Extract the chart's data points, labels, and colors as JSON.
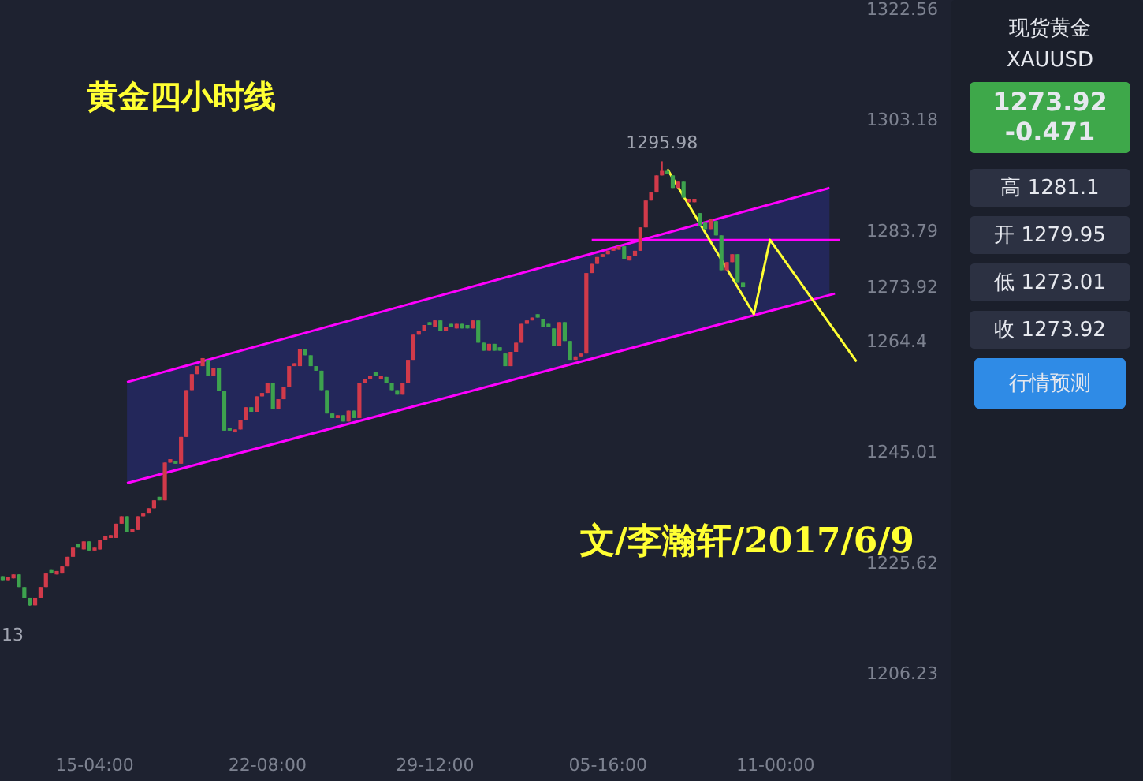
{
  "chart_data": {
    "type": "candlestick",
    "title": "黄金四小时线",
    "annotations": [
      "文/李瀚轩/2017/6/9",
      {
        "text": "1295.98",
        "y": 1295.98
      },
      "13",
      "现货黄金",
      "XAUUSD",
      "1273.92",
      "-0.471",
      "高 1281.1",
      "开 1279.95",
      "低 1273.01",
      "收 1273.92",
      "行情预测"
    ],
    "categories": [
      null,
      null,
      null,
      null,
      null,
      null,
      null,
      null,
      null,
      null,
      null,
      null,
      null,
      null,
      null,
      null,
      null,
      "15-04:00",
      null,
      null,
      null,
      null,
      null,
      null,
      null,
      null,
      null,
      null,
      null,
      null,
      null,
      null,
      null,
      null,
      null,
      null,
      null,
      null,
      null,
      null,
      null,
      null,
      null,
      null,
      null,
      null,
      null,
      null,
      null,
      "22-08:00",
      null,
      null,
      null,
      null,
      null,
      null,
      null,
      null,
      null,
      null,
      null,
      null,
      null,
      null,
      null,
      null,
      null,
      null,
      null,
      null,
      null,
      null,
      null,
      null,
      null,
      null,
      null,
      null,
      null,
      null,
      "29-12:00",
      null,
      null,
      null,
      null,
      null,
      null,
      null,
      null,
      null,
      null,
      null,
      null,
      null,
      null,
      null,
      null,
      null,
      null,
      null,
      null,
      null,
      null,
      null,
      null,
      null,
      null,
      null,
      null,
      null,
      null,
      null,
      "05-16:00",
      null,
      null,
      null,
      null,
      null,
      null,
      null,
      null,
      null,
      null,
      null,
      null,
      null,
      null,
      null,
      null,
      null,
      null,
      null,
      null,
      null,
      null,
      null,
      null,
      null,
      null,
      null,
      null,
      null,
      null,
      "11-00:00",
      null,
      null,
      null,
      null,
      null,
      null,
      null,
      null,
      null,
      null,
      null,
      null,
      null,
      null,
      null
    ],
    "colors": [
      "#3da24e",
      "#d13a4a",
      "#d13a4a",
      "#3da24e",
      "#3da24e",
      "#3da24e",
      "#d13a4a",
      "#d13a4a",
      "#d13a4a",
      "#3da24e",
      "#d13a4a",
      "#d13a4a",
      "#d13a4a",
      "#d13a4a",
      "#3da24e",
      "#d13a4a",
      "#3da24e",
      "#d13a4a",
      "#d13a4a",
      "#d13a4a",
      "#d13a4a",
      "#d13a4a",
      "#d13a4a",
      "#3da24e",
      "#d13a4a",
      "#d13a4a",
      "#d13a4a",
      "#d13a4a",
      "#d13a4a",
      "#3da24e",
      "#d13a4a",
      "#d13a4a",
      "#3da24e",
      "#d13a4a",
      "#d13a4a",
      "#d13a4a",
      "#d13a4a",
      "#d13a4a",
      "#3da24e",
      "#d13a4a",
      "#3da24e",
      "#3da24e",
      "#3da24e",
      "#d13a4a",
      "#d13a4a",
      "#d13a4a",
      "#3da24e",
      "#d13a4a",
      "#d13a4a",
      "#d13a4a",
      "#3da24e",
      "#d13a4a",
      "#d13a4a",
      "#d13a4a",
      "#d13a4a",
      "#d13a4a",
      "#3da24e",
      "#3da24e",
      "#3da24e",
      "#3da24e",
      "#3da24e",
      "#3da24e",
      "#d13a4a",
      "#3da24e",
      "#d13a4a",
      "#3da24e",
      "#d13a4a",
      "#d13a4a",
      "#d13a4a",
      "#3da24e",
      "#d13a4a",
      "#3da24e",
      "#3da24e",
      "#3da24e",
      "#d13a4a",
      "#d13a4a",
      "#d13a4a",
      "#d13a4a",
      "#d13a4a",
      "#3da24e",
      "#d13a4a",
      "#3da24e",
      "#d13a4a",
      "#3da24e",
      "#d13a4a",
      "#3da24e",
      "#3da24e",
      "#d13a4a",
      "#3da24e",
      "#3da24e",
      "#d13a4a",
      "#3da24e",
      "#3da24e",
      "#3da24e",
      "#d13a4a",
      "#d13a4a",
      "#d13a4a",
      "#d13a4a",
      "#d13a4a",
      "#3da24e",
      "#3da24e",
      "#3da24e",
      "#3da24e",
      "#d13a4a",
      "#3da24e",
      "#3da24e",
      "#d13a4a",
      "#d13a4a",
      "#d13a4a",
      "#d13a4a",
      "#d13a4a",
      "#d13a4a",
      "#d13a4a",
      "#d13a4a",
      "#d13a4a",
      "#3da24e",
      "#d13a4a",
      "#d13a4a",
      "#d13a4a",
      "#d13a4a",
      "#d13a4a",
      "#d13a4a",
      "#d13a4a",
      "#3da24e",
      "#3da24e",
      "#d13a4a",
      "#3da24e",
      "#d13a4a",
      "#d13a4a",
      "#3da24e",
      "#3da24e",
      "#d13a4a",
      "#3da24e",
      "#3da24e",
      "#d13a4a",
      "#d13a4a",
      "#3da24e",
      "#3da24e",
      null,
      null,
      null,
      null,
      null,
      null,
      null,
      null,
      null,
      null,
      null,
      null,
      null,
      null,
      null,
      null,
      null,
      null,
      null,
      null,
      null
    ],
    "ohlc": [
      [
        1223.3,
        1223.3,
        1222.6,
        1222.6
      ],
      [
        1222.6,
        1223.1,
        1222.6,
        1223.1
      ],
      [
        1222.9,
        1223.6,
        1222.9,
        1223.6
      ],
      [
        1223.6,
        1223.6,
        1221.4,
        1221.4
      ],
      [
        1221.4,
        1221.4,
        1219.5,
        1219.5
      ],
      [
        1219.5,
        1219.5,
        1218.13,
        1218.2
      ],
      [
        1218.2,
        1219.5,
        1218.2,
        1219.5
      ],
      [
        1219.5,
        1221.4,
        1219.5,
        1221.4
      ],
      [
        1221.4,
        1223.9,
        1221.4,
        1223.9
      ],
      [
        1224.5,
        1224.5,
        1223.9,
        1223.9
      ],
      [
        1223.6,
        1224.2,
        1223.6,
        1224.2
      ],
      [
        1223.9,
        1225.0,
        1223.9,
        1225.0
      ],
      [
        1225.0,
        1226.7,
        1225.0,
        1226.7
      ],
      [
        1226.7,
        1228.3,
        1226.7,
        1228.3
      ],
      [
        1228.9,
        1228.9,
        1228.3,
        1228.3
      ],
      [
        1228.0,
        1229.4,
        1228.0,
        1229.4
      ],
      [
        1229.4,
        1229.4,
        1227.8,
        1227.8
      ],
      [
        1227.8,
        1228.3,
        1227.8,
        1228.3
      ],
      [
        1228.0,
        1229.7,
        1228.0,
        1229.7
      ],
      [
        1229.7,
        1230.3,
        1229.7,
        1230.3
      ],
      [
        1230.0,
        1230.5,
        1230.0,
        1230.5
      ],
      [
        1230.0,
        1232.5,
        1230.0,
        1232.5
      ],
      [
        1232.5,
        1233.8,
        1232.5,
        1233.8
      ],
      [
        1233.8,
        1233.8,
        1231.1,
        1231.1
      ],
      [
        1231.1,
        1231.6,
        1231.1,
        1231.6
      ],
      [
        1231.4,
        1233.8,
        1231.4,
        1233.8
      ],
      [
        1233.8,
        1234.4,
        1233.8,
        1234.4
      ],
      [
        1234.4,
        1235.2,
        1234.4,
        1235.2
      ],
      [
        1235.2,
        1236.6,
        1235.2,
        1236.6
      ],
      [
        1237.2,
        1237.2,
        1236.6,
        1236.6
      ],
      [
        1236.6,
        1243.2,
        1236.6,
        1243.2
      ],
      [
        1243.2,
        1243.8,
        1243.2,
        1243.8
      ],
      [
        1243.5,
        1243.5,
        1243.0,
        1243.0
      ],
      [
        1243.0,
        1247.7,
        1243.0,
        1247.7
      ],
      [
        1247.7,
        1255.9,
        1247.7,
        1255.9
      ],
      [
        1255.9,
        1258.7,
        1255.9,
        1258.7
      ],
      [
        1258.7,
        1260.1,
        1258.7,
        1260.1
      ],
      [
        1260.1,
        1261.5,
        1260.1,
        1261.5
      ],
      [
        1261.2,
        1261.2,
        1258.4,
        1258.4
      ],
      [
        1258.4,
        1259.8,
        1258.4,
        1259.8
      ],
      [
        1259.8,
        1259.8,
        1255.7,
        1255.7
      ],
      [
        1255.7,
        1255.7,
        1248.8,
        1248.8
      ],
      [
        1249.3,
        1249.3,
        1248.8,
        1248.8
      ],
      [
        1248.5,
        1249.0,
        1248.5,
        1249.0
      ],
      [
        1249.0,
        1250.7,
        1249.0,
        1250.7
      ],
      [
        1250.7,
        1252.9,
        1250.7,
        1252.9
      ],
      [
        1252.9,
        1252.9,
        1252.1,
        1252.1
      ],
      [
        1252.1,
        1254.8,
        1252.1,
        1254.8
      ],
      [
        1254.8,
        1255.4,
        1254.8,
        1255.4
      ],
      [
        1255.4,
        1257.1,
        1255.4,
        1257.1
      ],
      [
        1257.1,
        1257.1,
        1252.6,
        1252.6
      ],
      [
        1252.6,
        1254.3,
        1252.6,
        1254.3
      ],
      [
        1254.3,
        1256.5,
        1254.3,
        1256.5
      ],
      [
        1256.5,
        1260.1,
        1256.5,
        1260.1
      ],
      [
        1260.1,
        1260.6,
        1260.1,
        1260.6
      ],
      [
        1260.1,
        1263.1,
        1260.1,
        1263.1
      ],
      [
        1263.1,
        1263.1,
        1262.0,
        1262.0
      ],
      [
        1262.0,
        1262.0,
        1260.1,
        1260.1
      ],
      [
        1260.1,
        1260.1,
        1259.3,
        1259.3
      ],
      [
        1259.3,
        1259.3,
        1255.9,
        1255.9
      ],
      [
        1255.9,
        1255.9,
        1251.8,
        1251.8
      ],
      [
        1251.8,
        1251.8,
        1251.0,
        1251.0
      ],
      [
        1251.0,
        1251.5,
        1251.0,
        1251.5
      ],
      [
        1251.5,
        1251.5,
        1250.4,
        1250.4
      ],
      [
        1250.4,
        1252.3,
        1250.4,
        1252.3
      ],
      [
        1252.3,
        1252.3,
        1251.0,
        1251.0
      ],
      [
        1251.0,
        1257.1,
        1251.0,
        1257.1
      ],
      [
        1257.1,
        1257.9,
        1257.1,
        1257.9
      ],
      [
        1257.9,
        1258.4,
        1257.9,
        1258.4
      ],
      [
        1259.0,
        1259.0,
        1258.4,
        1258.4
      ],
      [
        1257.9,
        1258.4,
        1257.9,
        1258.4
      ],
      [
        1258.2,
        1258.2,
        1257.1,
        1257.1
      ],
      [
        1257.1,
        1257.1,
        1255.9,
        1255.9
      ],
      [
        1255.9,
        1255.9,
        1255.1,
        1255.1
      ],
      [
        1255.1,
        1257.1,
        1255.1,
        1257.1
      ],
      [
        1257.1,
        1261.2,
        1257.1,
        1261.2
      ],
      [
        1261.2,
        1265.6,
        1261.2,
        1265.6
      ],
      [
        1265.6,
        1266.2,
        1265.6,
        1266.2
      ],
      [
        1266.2,
        1267.3,
        1266.2,
        1267.3
      ],
      [
        1267.8,
        1267.8,
        1267.3,
        1267.3
      ],
      [
        1267.0,
        1268.1,
        1267.0,
        1268.1
      ],
      [
        1268.1,
        1268.1,
        1266.2,
        1266.2
      ],
      [
        1266.2,
        1267.0,
        1266.2,
        1267.0
      ],
      [
        1267.5,
        1267.5,
        1267.0,
        1267.0
      ],
      [
        1266.7,
        1267.5,
        1266.7,
        1267.5
      ],
      [
        1267.5,
        1267.5,
        1266.7,
        1266.7
      ],
      [
        1267.3,
        1267.3,
        1266.7,
        1266.7
      ],
      [
        1266.7,
        1268.1,
        1266.7,
        1268.1
      ],
      [
        1268.1,
        1268.1,
        1264.2,
        1264.2
      ],
      [
        1264.2,
        1264.2,
        1262.8,
        1262.8
      ],
      [
        1262.8,
        1264.0,
        1262.8,
        1264.0
      ],
      [
        1264.0,
        1264.0,
        1262.8,
        1262.8
      ],
      [
        1263.4,
        1263.4,
        1262.8,
        1262.8
      ],
      [
        1262.3,
        1262.3,
        1260.1,
        1260.1
      ],
      [
        1260.1,
        1262.6,
        1260.1,
        1262.6
      ],
      [
        1262.6,
        1264.2,
        1262.6,
        1264.2
      ],
      [
        1264.2,
        1267.5,
        1264.2,
        1267.5
      ],
      [
        1267.5,
        1268.1,
        1267.5,
        1268.1
      ],
      [
        1268.1,
        1268.6,
        1268.1,
        1268.6
      ],
      [
        1269.2,
        1269.2,
        1268.6,
        1268.6
      ],
      [
        1268.4,
        1268.4,
        1267.0,
        1267.0
      ],
      [
        1267.5,
        1267.5,
        1267.0,
        1267.0
      ],
      [
        1266.7,
        1266.7,
        1263.7,
        1263.7
      ],
      [
        1263.7,
        1267.8,
        1263.7,
        1267.8
      ],
      [
        1267.8,
        1267.8,
        1264.5,
        1264.5
      ],
      [
        1264.5,
        1264.5,
        1261.2,
        1261.2
      ],
      [
        1261.2,
        1261.8,
        1261.2,
        1261.8
      ],
      [
        1261.8,
        1262.3,
        1261.8,
        1262.3
      ],
      [
        1262.3,
        1276.4,
        1262.3,
        1276.4
      ],
      [
        1276.4,
        1278.0,
        1276.4,
        1278.0
      ],
      [
        1278.0,
        1279.2,
        1278.0,
        1279.2
      ],
      [
        1279.2,
        1279.7,
        1279.2,
        1279.7
      ],
      [
        1279.7,
        1280.3,
        1279.7,
        1280.3
      ],
      [
        1280.3,
        1280.8,
        1280.3,
        1280.8
      ],
      [
        1280.5,
        1281.1,
        1280.5,
        1281.1
      ],
      [
        1281.1,
        1281.1,
        1278.9,
        1278.9
      ],
      [
        1278.6,
        1279.4,
        1278.6,
        1279.4
      ],
      [
        1279.4,
        1280.3,
        1279.4,
        1280.3
      ],
      [
        1280.3,
        1284.4,
        1280.3,
        1284.4
      ],
      [
        1284.4,
        1289.1,
        1284.4,
        1289.1
      ],
      [
        1289.1,
        1290.5,
        1289.1,
        1290.5
      ],
      [
        1290.5,
        1293.5,
        1290.5,
        1293.5
      ],
      [
        1293.5,
        1295.98,
        1293.5,
        1294.3
      ],
      [
        1294.3,
        1294.3,
        1293.8,
        1293.8
      ],
      [
        1293.5,
        1293.5,
        1291.3,
        1291.3
      ],
      [
        1291.3,
        1292.4,
        1291.3,
        1292.4
      ],
      [
        1292.4,
        1292.4,
        1289.6,
        1289.6
      ],
      [
        1288.8,
        1289.4,
        1288.8,
        1289.4
      ],
      [
        1288.8,
        1289.4,
        1288.8,
        1289.4
      ],
      [
        1286.9,
        1286.9,
        1284.7,
        1284.7
      ],
      [
        1285.2,
        1285.2,
        1284.1,
        1284.1
      ],
      [
        1284.1,
        1285.8,
        1284.1,
        1285.8
      ],
      [
        1285.5,
        1285.5,
        1283.0,
        1283.0
      ],
      [
        1283.0,
        1283.0,
        1276.9,
        1276.9
      ],
      [
        1276.9,
        1278.3,
        1276.9,
        1278.3
      ],
      [
        1278.3,
        1279.7,
        1278.3,
        1279.7
      ],
      [
        1279.7,
        1279.7,
        1274.7,
        1274.7
      ],
      [
        1274.7,
        1274.7,
        1273.92,
        1273.92
      ],
      null,
      null,
      null,
      null,
      null,
      null,
      null,
      null,
      null,
      null,
      null,
      null,
      null,
      null,
      null,
      null,
      null,
      null,
      null,
      null,
      null
    ],
    "series": [
      {
        "type": "line",
        "color": "#ff00ff",
        "values": [
          null,
          null,
          null,
          null,
          null,
          null,
          null,
          null,
          null,
          null,
          null,
          null,
          null,
          null,
          null,
          null,
          null,
          null,
          null,
          null,
          null,
          null,
          null,
          1257.3,
          null,
          null,
          null,
          null,
          null,
          null,
          null,
          null,
          null,
          null,
          null,
          null,
          null,
          null,
          null,
          null,
          null,
          null,
          null,
          null,
          null,
          null,
          null,
          null,
          null,
          null,
          null,
          null,
          null,
          null,
          null,
          null,
          null,
          null,
          null,
          null,
          null,
          null,
          null,
          null,
          null,
          null,
          null,
          null,
          null,
          null,
          null,
          null,
          null,
          null,
          null,
          null,
          null,
          null,
          null,
          null,
          null,
          null,
          null,
          null,
          null,
          null,
          null,
          null,
          null,
          null,
          null,
          null,
          null,
          null,
          null,
          null,
          null,
          null,
          null,
          null,
          null,
          null,
          null,
          null,
          null,
          null,
          null,
          null,
          null,
          null,
          null,
          null,
          null,
          null,
          null,
          null,
          null,
          null,
          null,
          null,
          null,
          null,
          null,
          null,
          null,
          null,
          null,
          null,
          null,
          null,
          null,
          null,
          null,
          null,
          null,
          null,
          null,
          null,
          null,
          null,
          null,
          null,
          null,
          null,
          null,
          null,
          null,
          null,
          null,
          null,
          null,
          null,
          null,
          1291.3,
          null,
          null,
          null,
          null,
          null
        ],
        "lower": [
          null,
          null,
          null,
          null,
          null,
          null,
          null,
          null,
          null,
          null,
          null,
          null,
          null,
          null,
          null,
          null,
          null,
          null,
          null,
          null,
          null,
          null,
          null,
          1239.6,
          null,
          null,
          null,
          null,
          null,
          null,
          null,
          null,
          null,
          null,
          null,
          null,
          null,
          null,
          null,
          null,
          null,
          null,
          null,
          null,
          null,
          null,
          null,
          null,
          null,
          null,
          null,
          null,
          null,
          null,
          null,
          null,
          null,
          null,
          null,
          null,
          null,
          null,
          null,
          null,
          null,
          null,
          null,
          null,
          null,
          null,
          null,
          null,
          null,
          null,
          null,
          null,
          null,
          null,
          null,
          null,
          null,
          null,
          null,
          null,
          null,
          null,
          null,
          null,
          null,
          null,
          null,
          null,
          null,
          null,
          null,
          null,
          null,
          null,
          null,
          null,
          null,
          null,
          null,
          null,
          null,
          null,
          null,
          null,
          null,
          null,
          null,
          null,
          null,
          null,
          null,
          null,
          null,
          null,
          null,
          null,
          null,
          null,
          null,
          null,
          null,
          null,
          null,
          null,
          null,
          null,
          null,
          null,
          null,
          null,
          null,
          null,
          null,
          null,
          null,
          null,
          null,
          null,
          null,
          null,
          null,
          null,
          null,
          null,
          null,
          null,
          null,
          null,
          null,
          1272.5,
          null,
          null,
          null,
          null,
          null
        ],
        "upper": [
          null,
          null,
          null,
          null,
          null,
          null,
          null,
          null,
          null,
          null,
          null,
          null,
          null,
          null,
          null,
          null,
          null,
          null,
          null,
          null,
          null,
          null,
          null,
          1257.3,
          null,
          null,
          null,
          null,
          null,
          null,
          null,
          null,
          null,
          null,
          null,
          null,
          null,
          null,
          null,
          null,
          null,
          null,
          null,
          null,
          null,
          null,
          null,
          null,
          null,
          null,
          null,
          null,
          null,
          null,
          null,
          null,
          null,
          null,
          null,
          null,
          null,
          null,
          null,
          null,
          null,
          null,
          null,
          null,
          null,
          null,
          null,
          null,
          null,
          null,
          null,
          null,
          null,
          null,
          null,
          null,
          null,
          null,
          null,
          null,
          null,
          null,
          null,
          null,
          null,
          null,
          null,
          null,
          null,
          null,
          null,
          null,
          null,
          null,
          null,
          null,
          null,
          null,
          null,
          null,
          null,
          null,
          null,
          null,
          null,
          null,
          null,
          null,
          null,
          null,
          null,
          null,
          null,
          null,
          null,
          null,
          null,
          null,
          null,
          null,
          null,
          null,
          null,
          null,
          null,
          null,
          null,
          null,
          null,
          null,
          null,
          null,
          null,
          null,
          null,
          null,
          null,
          null,
          null,
          null,
          null,
          null,
          null,
          null,
          null,
          null,
          null,
          null,
          null,
          1291.3,
          null,
          null,
          null,
          null,
          null
        ]
      },
      {
        "type": "line",
        "color": "#ff00ff",
        "values": [
          null,
          null,
          null,
          null,
          null,
          null,
          null,
          null,
          null,
          null,
          null,
          null,
          null,
          null,
          null,
          null,
          null,
          null,
          null,
          null,
          null,
          null,
          null,
          1239.6,
          null,
          null,
          null,
          null,
          null,
          null,
          null,
          null,
          null,
          null,
          null,
          null,
          null,
          null,
          null,
          null,
          null,
          null,
          null,
          null,
          null,
          null,
          null,
          null,
          null,
          null,
          null,
          null,
          null,
          null,
          null,
          null,
          null,
          null,
          null,
          null,
          null,
          null,
          null,
          null,
          null,
          null,
          null,
          null,
          null,
          null,
          null,
          null,
          null,
          null,
          null,
          null,
          null,
          null,
          null,
          null,
          null,
          null,
          null,
          null,
          null,
          null,
          null,
          null,
          null,
          null,
          null,
          null,
          null,
          null,
          null,
          null,
          null,
          null,
          null,
          null,
          null,
          null,
          null,
          null,
          null,
          null,
          null,
          null,
          null,
          null,
          null,
          null,
          null,
          null,
          null,
          null,
          null,
          null,
          null,
          null,
          null,
          null,
          null,
          null,
          null,
          null,
          null,
          null,
          null,
          null,
          null,
          null,
          null,
          null,
          null,
          null,
          null,
          null,
          null,
          null,
          null,
          null,
          null,
          null,
          null,
          null,
          null,
          null,
          null,
          null,
          null,
          null,
          null,
          null,
          1272.8,
          null,
          null,
          null,
          null
        ]
      },
      {
        "type": "line",
        "color": "#ff00ff",
        "values": [
          null,
          null,
          null,
          null,
          null,
          null,
          null,
          null,
          null,
          null,
          null,
          null,
          null,
          null,
          null,
          null,
          null,
          null,
          null,
          null,
          null,
          null,
          null,
          null,
          null,
          null,
          null,
          null,
          null,
          null,
          null,
          null,
          null,
          null,
          null,
          null,
          null,
          null,
          null,
          null,
          null,
          null,
          null,
          null,
          null,
          null,
          null,
          null,
          null,
          null,
          null,
          null,
          null,
          null,
          null,
          null,
          null,
          null,
          null,
          null,
          null,
          null,
          null,
          null,
          null,
          null,
          null,
          null,
          null,
          null,
          null,
          null,
          null,
          null,
          null,
          null,
          null,
          null,
          null,
          null,
          null,
          null,
          null,
          null,
          null,
          null,
          null,
          null,
          null,
          null,
          null,
          null,
          null,
          null,
          null,
          null,
          null,
          null,
          null,
          null,
          null,
          null,
          null,
          null,
          null,
          null,
          null,
          null,
          null,
          1282.2,
          null,
          null,
          null,
          null,
          null,
          null,
          null,
          null,
          null,
          null,
          null,
          null,
          null,
          null,
          null,
          null,
          null,
          null,
          null,
          null,
          null,
          null,
          null,
          null,
          null,
          null,
          null,
          null,
          null,
          null,
          null,
          null,
          null,
          null,
          null,
          null,
          null,
          null,
          null,
          null,
          null,
          null,
          null,
          null,
          null,
          1282.2,
          null,
          null,
          null
        ]
      },
      {
        "type": "line",
        "color": "#ffff33",
        "values": [
          null,
          null,
          null,
          null,
          null,
          null,
          null,
          null,
          null,
          null,
          null,
          null,
          null,
          null,
          null,
          null,
          null,
          null,
          null,
          null,
          null,
          null,
          null,
          null,
          null,
          null,
          null,
          null,
          null,
          null,
          null,
          null,
          null,
          null,
          null,
          null,
          null,
          null,
          null,
          null,
          null,
          null,
          null,
          null,
          null,
          null,
          null,
          null,
          null,
          null,
          null,
          null,
          null,
          null,
          null,
          null,
          null,
          null,
          null,
          null,
          null,
          null,
          null,
          null,
          null,
          null,
          null,
          null,
          null,
          null,
          null,
          null,
          null,
          null,
          null,
          null,
          null,
          null,
          null,
          null,
          null,
          null,
          null,
          null,
          null,
          null,
          null,
          null,
          null,
          null,
          null,
          null,
          null,
          null,
          null,
          null,
          null,
          null,
          null,
          null,
          null,
          null,
          null,
          null,
          null,
          null,
          null,
          null,
          null,
          null,
          null,
          null,
          null,
          null,
          null,
          null,
          null,
          null,
          null,
          null,
          null,
          null,
          null,
          1294.6,
          null,
          null,
          null,
          null,
          null,
          null,
          null,
          null,
          null,
          null,
          null,
          null,
          null,
          null,
          null,
          1269.2,
          null,
          null,
          1282.2,
          null,
          null,
          null,
          null,
          null,
          null,
          null,
          null,
          null,
          null,
          null,
          null,
          null,
          null,
          null,
          1260.9
        ]
      }
    ],
    "ylim": [
      1206.23,
      1322.56
    ],
    "yticks": [
      1206.23,
      1225.62,
      1245.01,
      1264.4,
      1273.92,
      1283.79,
      1303.18,
      1322.56
    ],
    "tick_labels": true
  }
}
